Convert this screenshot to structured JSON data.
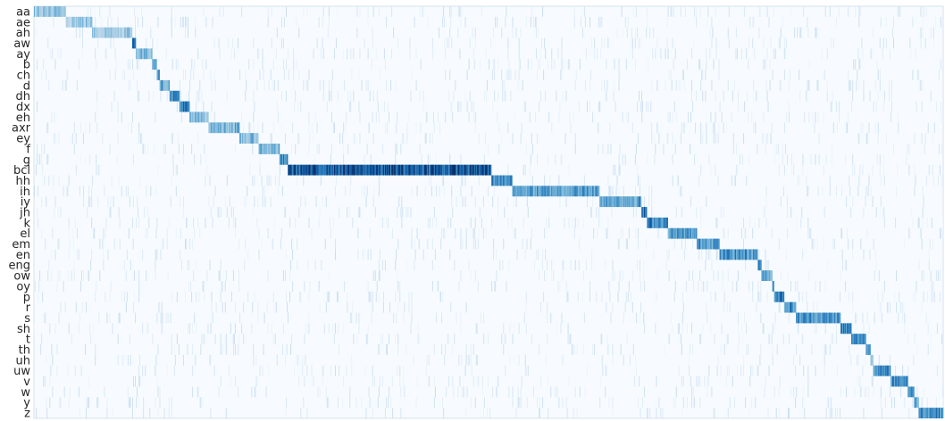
{
  "chart_data": {
    "type": "heatmap",
    "colormap": "Blues",
    "colors": {
      "low": "#f7fbff",
      "mid": "#6baed6",
      "high": "#08306b",
      "frame": "#d6e2ee"
    },
    "rows": [
      "aa",
      "ae",
      "ah",
      "aw",
      "ay",
      "b",
      "ch",
      "d",
      "dh",
      "dx",
      "eh",
      "axr",
      "ey",
      "f",
      "g",
      "bcl",
      "hh",
      "ih",
      "iy",
      "jh",
      "k",
      "el",
      "em",
      "en",
      "eng",
      "ow",
      "oy",
      "p",
      "r",
      "s",
      "sh",
      "t",
      "th",
      "uh",
      "uw",
      "v",
      "w",
      "y",
      "z"
    ],
    "n_columns": 1000,
    "diagonal_segments": [
      {
        "row": "aa",
        "start": 0.0,
        "end": 0.035,
        "intensity": 0.45
      },
      {
        "row": "ae",
        "start": 0.035,
        "end": 0.064,
        "intensity": 0.45
      },
      {
        "row": "ah",
        "start": 0.064,
        "end": 0.108,
        "intensity": 0.45
      },
      {
        "row": "aw",
        "start": 0.108,
        "end": 0.112,
        "intensity": 0.85
      },
      {
        "row": "ay",
        "start": 0.112,
        "end": 0.13,
        "intensity": 0.55
      },
      {
        "row": "b",
        "start": 0.13,
        "end": 0.135,
        "intensity": 0.7
      },
      {
        "row": "ch",
        "start": 0.135,
        "end": 0.138,
        "intensity": 0.7
      },
      {
        "row": "d",
        "start": 0.138,
        "end": 0.149,
        "intensity": 0.6
      },
      {
        "row": "dh",
        "start": 0.149,
        "end": 0.16,
        "intensity": 0.75
      },
      {
        "row": "dx",
        "start": 0.16,
        "end": 0.171,
        "intensity": 0.75
      },
      {
        "row": "eh",
        "start": 0.171,
        "end": 0.192,
        "intensity": 0.5
      },
      {
        "row": "axr",
        "start": 0.192,
        "end": 0.226,
        "intensity": 0.55
      },
      {
        "row": "ey",
        "start": 0.226,
        "end": 0.247,
        "intensity": 0.5
      },
      {
        "row": "f",
        "start": 0.247,
        "end": 0.27,
        "intensity": 0.55
      },
      {
        "row": "g",
        "start": 0.27,
        "end": 0.279,
        "intensity": 0.7
      },
      {
        "row": "bcl",
        "start": 0.279,
        "end": 0.503,
        "intensity": 0.9
      },
      {
        "row": "hh",
        "start": 0.503,
        "end": 0.526,
        "intensity": 0.75
      },
      {
        "row": "ih",
        "start": 0.526,
        "end": 0.622,
        "intensity": 0.65
      },
      {
        "row": "iy",
        "start": 0.622,
        "end": 0.668,
        "intensity": 0.65
      },
      {
        "row": "jh",
        "start": 0.668,
        "end": 0.674,
        "intensity": 0.8
      },
      {
        "row": "k",
        "start": 0.674,
        "end": 0.697,
        "intensity": 0.75
      },
      {
        "row": "el",
        "start": 0.697,
        "end": 0.729,
        "intensity": 0.65
      },
      {
        "row": "em",
        "start": 0.729,
        "end": 0.754,
        "intensity": 0.7
      },
      {
        "row": "en",
        "start": 0.754,
        "end": 0.796,
        "intensity": 0.7
      },
      {
        "row": "eng",
        "start": 0.796,
        "end": 0.8,
        "intensity": 0.8
      },
      {
        "row": "ow",
        "start": 0.8,
        "end": 0.812,
        "intensity": 0.6
      },
      {
        "row": "oy",
        "start": 0.812,
        "end": 0.814,
        "intensity": 0.7
      },
      {
        "row": "p",
        "start": 0.814,
        "end": 0.825,
        "intensity": 0.8
      },
      {
        "row": "r",
        "start": 0.825,
        "end": 0.838,
        "intensity": 0.7
      },
      {
        "row": "s",
        "start": 0.838,
        "end": 0.887,
        "intensity": 0.7
      },
      {
        "row": "sh",
        "start": 0.887,
        "end": 0.899,
        "intensity": 0.75
      },
      {
        "row": "t",
        "start": 0.899,
        "end": 0.915,
        "intensity": 0.75
      },
      {
        "row": "th",
        "start": 0.915,
        "end": 0.92,
        "intensity": 0.7
      },
      {
        "row": "uh",
        "start": 0.92,
        "end": 0.923,
        "intensity": 0.6
      },
      {
        "row": "uw",
        "start": 0.923,
        "end": 0.942,
        "intensity": 0.7
      },
      {
        "row": "v",
        "start": 0.942,
        "end": 0.961,
        "intensity": 0.75
      },
      {
        "row": "w",
        "start": 0.961,
        "end": 0.968,
        "intensity": 0.75
      },
      {
        "row": "y",
        "start": 0.968,
        "end": 0.973,
        "intensity": 0.6
      },
      {
        "row": "z",
        "start": 0.973,
        "end": 1.0,
        "intensity": 0.75
      }
    ],
    "xlabel": "",
    "ylabel": "",
    "grid": false,
    "legend": "none"
  }
}
